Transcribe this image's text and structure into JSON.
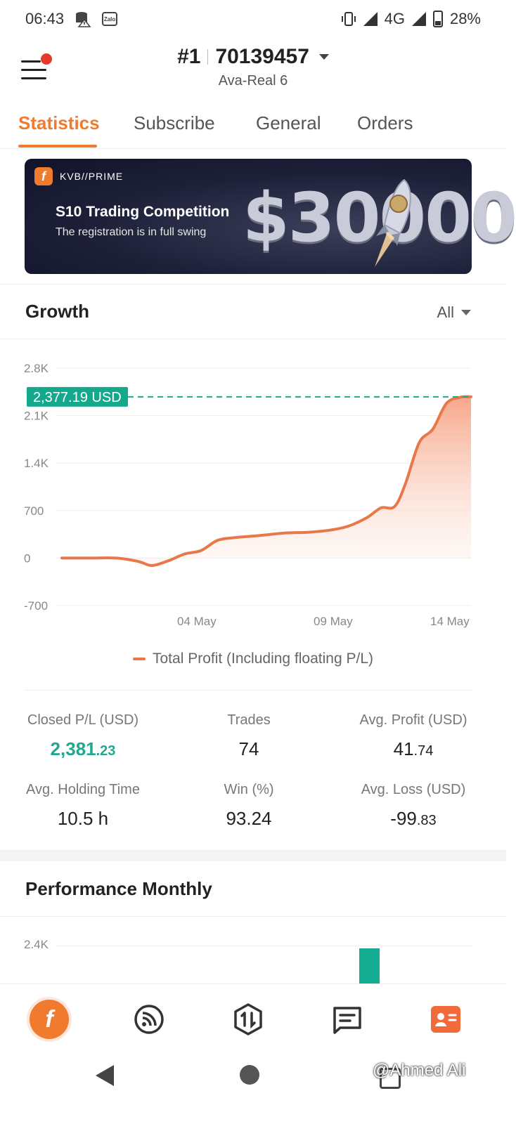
{
  "status_bar": {
    "time": "06:43",
    "network": "4G",
    "battery": "28%"
  },
  "header": {
    "rank": "#1",
    "account_number": "70139457",
    "account_subtitle": "Ava-Real 6"
  },
  "tabs": [
    "Statistics",
    "Subscribe",
    "General",
    "Orders"
  ],
  "banner": {
    "brand": "KVB//PRIME",
    "title": "S10 Trading Competition",
    "subtitle": "The registration is in full swing",
    "amount": "$30000"
  },
  "growth": {
    "title": "Growth",
    "filter": "All",
    "current_value_label": "2,377.19 USD",
    "legend": "Total Profit (Including floating P/L)"
  },
  "chart_data": {
    "type": "area",
    "title": "Growth",
    "xlabel": "",
    "ylabel": "",
    "ylim": [
      -700,
      2800
    ],
    "y_ticks": [
      "2.8K",
      "2.1K",
      "1.4K",
      "700",
      "0",
      "-700"
    ],
    "y_tick_values": [
      2800,
      2100,
      1400,
      700,
      0,
      -700
    ],
    "x_ticks": [
      "04 May",
      "09 May",
      "14 May"
    ],
    "x_tick_positions": [
      5,
      10,
      15
    ],
    "reference_line": 2377.19,
    "series": [
      {
        "name": "Total Profit (Including floating P/L)",
        "color": "#e8774a",
        "x": [
          0,
          1,
          2,
          2.8,
          3.3,
          3.9,
          4.5,
          5.1,
          5.7,
          6.3,
          7.2,
          8.2,
          9,
          9.8,
          10.5,
          11.2,
          11.7,
          12.2,
          12.6,
          13.1,
          13.6,
          14.1,
          14.6,
          15
        ],
        "y": [
          0,
          0,
          0,
          -50,
          -110,
          -40,
          60,
          110,
          260,
          300,
          330,
          370,
          380,
          410,
          470,
          600,
          740,
          760,
          1100,
          1700,
          1900,
          2280,
          2370,
          2377
        ]
      }
    ],
    "grid": true
  },
  "stats": {
    "closed_pl_label": "Closed P/L (USD)",
    "closed_pl_int": "2,381",
    "closed_pl_dec": ".23",
    "trades_label": "Trades",
    "trades_value": "74",
    "avg_profit_label": "Avg. Profit (USD)",
    "avg_profit_int": "41",
    "avg_profit_dec": ".74",
    "avg_holding_label": "Avg. Holding Time",
    "avg_holding_value": "10.5 h",
    "win_label": "Win (%)",
    "win_value": "93.24",
    "avg_loss_label": "Avg. Loss (USD)",
    "avg_loss_int": "-99",
    "avg_loss_dec": ".83"
  },
  "performance": {
    "title": "Performance Monthly",
    "tick_top": "2.4K"
  },
  "watermark": "@Ahmed Ali",
  "colors": {
    "accent": "#f07a2e",
    "line": "#e8774a",
    "teal": "#21a88f"
  }
}
